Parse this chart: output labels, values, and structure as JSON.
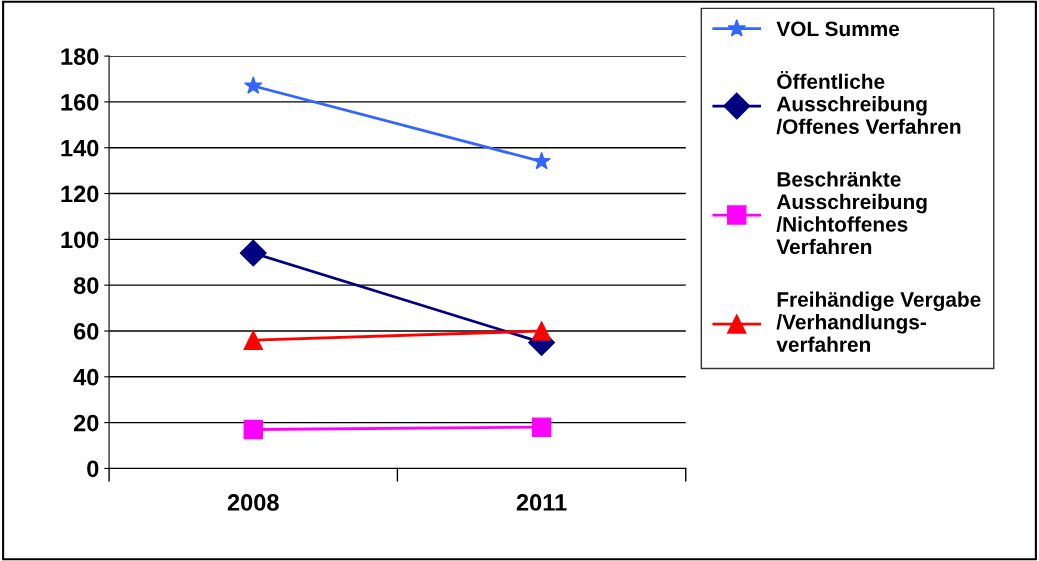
{
  "chart_data": {
    "type": "line",
    "categories": [
      "2008",
      "2011"
    ],
    "series": [
      {
        "name": "VOL Summe",
        "color": "#3366ff",
        "marker": "star",
        "values": [
          167,
          134
        ]
      },
      {
        "name": "Öffentliche Ausschreibung /Offenes Verfahren",
        "color": "#000080",
        "marker": "diamond",
        "values": [
          94,
          55
        ]
      },
      {
        "name": "Beschränkte Ausschreibung /Nichtoffenes Verfahren",
        "color": "#ff00ff",
        "marker": "square",
        "values": [
          17,
          18
        ]
      },
      {
        "name": "Freihändige Vergabe /Verhandlungs-verfahren",
        "color": "#ff0000",
        "marker": "triangle",
        "values": [
          56,
          60
        ]
      }
    ],
    "ylim": [
      0,
      180
    ],
    "yticks": [
      0,
      20,
      40,
      60,
      80,
      100,
      120,
      140,
      160,
      180
    ],
    "grid": "y",
    "legend": "right"
  }
}
